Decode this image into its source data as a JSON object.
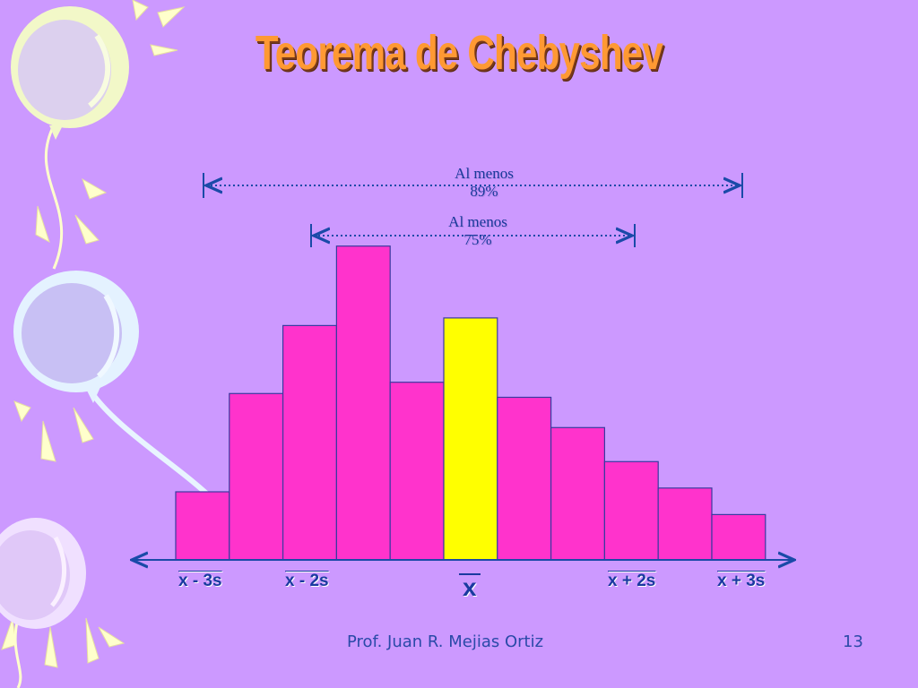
{
  "slide": {
    "title": "Teorema de Chebyshev",
    "footer_author": "Prof. Juan R. Mejias Ortiz",
    "page_number": "13"
  },
  "colors": {
    "background": "#cc99ff",
    "bar": "#ff33cc",
    "highlight_bar": "#ffff00",
    "axis": "#1a4aa8",
    "title": "#ff9933"
  },
  "chart_data": {
    "type": "bar",
    "values": [
      18,
      44,
      62,
      83,
      47,
      64,
      43,
      35,
      26,
      19,
      12
    ],
    "highlight_index": 5,
    "ylim": [
      0,
      100
    ],
    "tick_labels": {
      "minus3s": "x - 3s",
      "minus2s": "x - 2s",
      "mean": "x",
      "plus2s": "x + 2s",
      "plus3s": "x + 3s"
    },
    "annotations": {
      "outer": {
        "line1": "Al menos",
        "line2": "89%"
      },
      "inner": {
        "line1": "Al menos",
        "line2": "75%"
      }
    }
  }
}
